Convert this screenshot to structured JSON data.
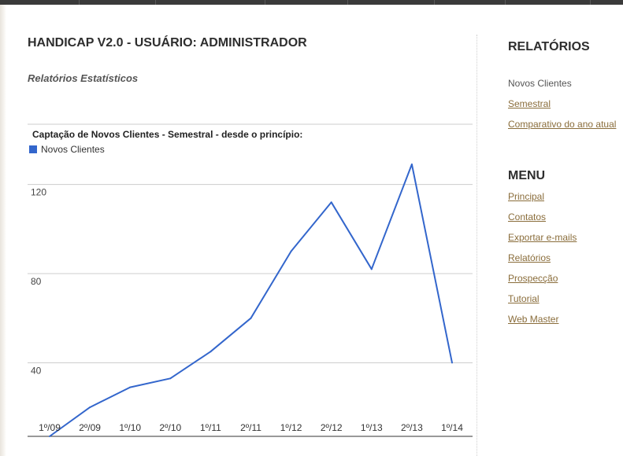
{
  "header": {
    "title": "HANDICAP V2.0 - USUÁRIO: ADMINISTRADOR",
    "subtitle": "Relatórios Estatísticos"
  },
  "sidebar": {
    "reports_heading": "RELATÓRIOS",
    "reports": [
      {
        "label": "Novos Clientes",
        "active": true
      },
      {
        "label": "Semestral",
        "active": false
      },
      {
        "label": "Comparativo do ano atual",
        "active": false
      }
    ],
    "menu_heading": "MENU",
    "menu": [
      {
        "label": "Principal"
      },
      {
        "label": "Contatos"
      },
      {
        "label": "Exportar e-mails"
      },
      {
        "label": "Relatórios"
      },
      {
        "label": "Prospecção"
      },
      {
        "label": "Tutorial"
      },
      {
        "label": "Web Master"
      }
    ]
  },
  "chart_data": {
    "type": "line",
    "title": "Captação de Novos Clientes - Semestral - desde o princípio:",
    "categories": [
      "1º/09",
      "2º/09",
      "1º/10",
      "2º/10",
      "1º/11",
      "2º/11",
      "1º/12",
      "2º/12",
      "1º/13",
      "2º/13",
      "1º/14"
    ],
    "series": [
      {
        "name": "Novos Clientes",
        "color": "#3366cc",
        "values": [
          7,
          20,
          29,
          33,
          45,
          60,
          90,
          112,
          82,
          129,
          40
        ]
      }
    ],
    "yticks": [
      40,
      80,
      120
    ],
    "ylim": [
      7,
      147
    ],
    "legend": "top-left",
    "grid": true
  }
}
